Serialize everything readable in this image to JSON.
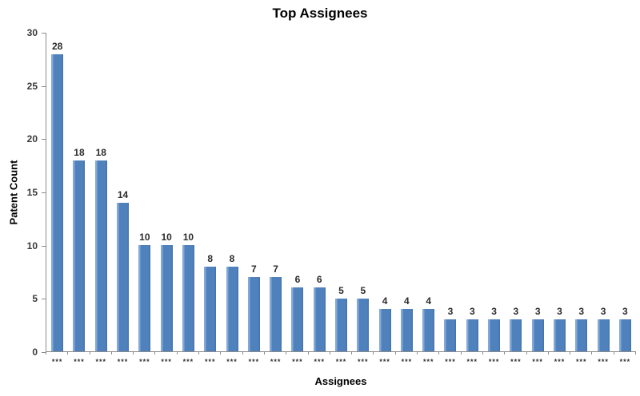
{
  "chart_data": {
    "type": "bar",
    "title": "Top Assignees",
    "xlabel": "Assignees",
    "ylabel": "Patent Count",
    "categories": [
      "***",
      "***",
      "***",
      "***",
      "***",
      "***",
      "***",
      "***",
      "***",
      "***",
      "***",
      "***",
      "***",
      "***",
      "***",
      "***",
      "***",
      "***",
      "***",
      "***",
      "***",
      "***",
      "***",
      "***",
      "***",
      "***",
      "***"
    ],
    "values": [
      28,
      18,
      18,
      14,
      10,
      10,
      10,
      8,
      8,
      7,
      7,
      6,
      6,
      5,
      5,
      4,
      4,
      4,
      3,
      3,
      3,
      3,
      3,
      3,
      3,
      3,
      3
    ],
    "ylim": [
      0,
      30
    ],
    "yticks": [
      0,
      5,
      10,
      15,
      20,
      25,
      30
    ],
    "data_labels_shown": true,
    "grid": false,
    "legend_position": "none",
    "colors": {
      "bar_fill": "#4f81bd",
      "bar_highlight": "#84a9d6",
      "axis_line": "#8c8c8c",
      "tick_label": "#3a3a3a",
      "title_text": "#000000",
      "background": "#ffffff"
    }
  }
}
